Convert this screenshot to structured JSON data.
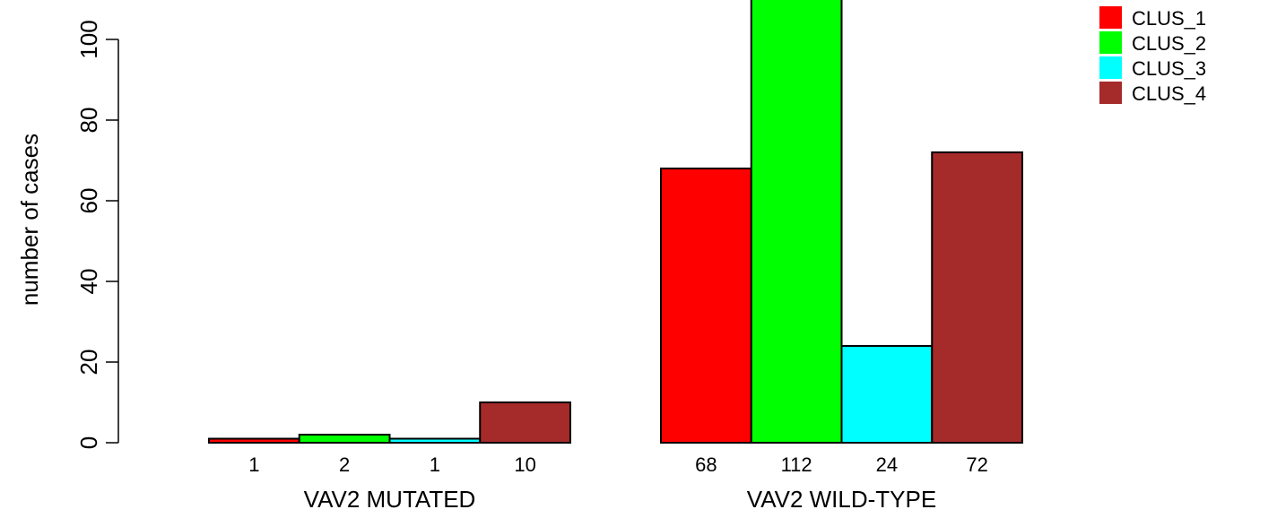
{
  "chart_data": {
    "type": "bar",
    "ylabel": "number of cases",
    "ylim": [
      0,
      110
    ],
    "yticks": [
      0,
      20,
      40,
      60,
      80,
      100
    ],
    "categories": [
      "VAV2 MUTATED",
      "VAV2 WILD-TYPE"
    ],
    "series": [
      {
        "name": "CLUS_1",
        "color": "#ff0000",
        "values": [
          1,
          68
        ]
      },
      {
        "name": "CLUS_2",
        "color": "#00ff00",
        "values": [
          2,
          112
        ]
      },
      {
        "name": "CLUS_3",
        "color": "#00ffff",
        "values": [
          1,
          24
        ]
      },
      {
        "name": "CLUS_4",
        "color": "#a52a2a",
        "values": [
          10,
          72
        ]
      }
    ],
    "legend": "top-right",
    "grid": false
  }
}
